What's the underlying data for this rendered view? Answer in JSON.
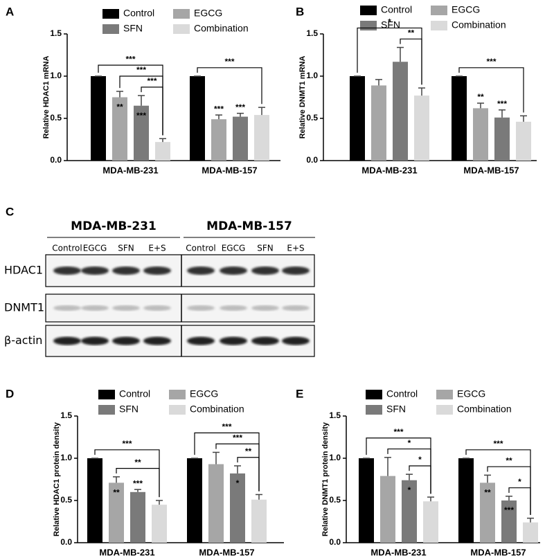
{
  "chart_data": [
    {
      "type": "bar",
      "panel": "A",
      "ylabel": "Relative HDAC1 mRNA",
      "categories": [
        "MDA-MB-231",
        "MDA-MB-157"
      ],
      "series": [
        {
          "name": "Control",
          "color": "#000000",
          "values": [
            1.0,
            1.0
          ],
          "errors": [
            0,
            0
          ]
        },
        {
          "name": "EGCG",
          "color": "#a6a6a6",
          "values": [
            0.75,
            0.49
          ],
          "errors": [
            0.07,
            0.05
          ]
        },
        {
          "name": "SFN",
          "color": "#7a7a7a",
          "values": [
            0.65,
            0.52
          ],
          "errors": [
            0.12,
            0.04
          ]
        },
        {
          "name": "Combination",
          "color": "#dadada",
          "values": [
            0.22,
            0.54
          ],
          "errors": [
            0.04,
            0.09
          ]
        }
      ],
      "ylim": [
        0,
        1.5
      ],
      "yticks": [
        {
          "value": 0,
          "label": "0.0"
        },
        0.5,
        {
          "value": 1,
          "label": "1.0"
        },
        1.5
      ],
      "stars": [
        {
          "text": "**",
          "series": 1,
          "category": 0,
          "placement": "inside"
        },
        {
          "text": "***",
          "series": 2,
          "category": 0,
          "placement": "inside"
        },
        {
          "text": "***",
          "series": 1,
          "category": 1,
          "placement": "above"
        },
        {
          "text": "***",
          "series": 2,
          "category": 1,
          "placement": "above"
        }
      ],
      "brackets": [
        {
          "category": 0,
          "from": 0,
          "to": 3,
          "text": "***"
        },
        {
          "category": 0,
          "from": 1,
          "to": 3,
          "text": "***"
        },
        {
          "category": 0,
          "from": 2,
          "to": 3,
          "text": "***"
        },
        {
          "category": 1,
          "from": 0,
          "to": 3,
          "text": "***"
        }
      ]
    },
    {
      "type": "bar",
      "panel": "B",
      "ylabel": "Relative DNMT1 mRNA",
      "categories": [
        "MDA-MB-231",
        "MDA-MB-157"
      ],
      "series": [
        {
          "name": "Control",
          "color": "#000000",
          "values": [
            1.0,
            1.0
          ],
          "errors": [
            0,
            0
          ]
        },
        {
          "name": "EGCG",
          "color": "#a6a6a6",
          "values": [
            0.89,
            0.62
          ],
          "errors": [
            0.07,
            0.06
          ]
        },
        {
          "name": "SFN",
          "color": "#7a7a7a",
          "values": [
            1.17,
            0.51
          ],
          "errors": [
            0.17,
            0.09
          ]
        },
        {
          "name": "Combination",
          "color": "#dadada",
          "values": [
            0.77,
            0.46
          ],
          "errors": [
            0.09,
            0.07
          ]
        }
      ],
      "ylim": [
        0,
        1.5
      ],
      "yticks": [
        {
          "value": 0,
          "label": "0.0"
        },
        0.5,
        {
          "value": 1,
          "label": "1.0"
        },
        1.5
      ],
      "stars": [
        {
          "text": "**",
          "series": 1,
          "category": 1,
          "placement": "above"
        },
        {
          "text": "***",
          "series": 2,
          "category": 1,
          "placement": "above"
        }
      ],
      "brackets": [
        {
          "category": 0,
          "from": 0,
          "to": 3,
          "text": "*"
        },
        {
          "category": 0,
          "from": 2,
          "to": 3,
          "text": "**"
        },
        {
          "category": 1,
          "from": 0,
          "to": 3,
          "text": "***"
        }
      ]
    },
    {
      "type": "bar",
      "panel": "D",
      "ylabel": "Relative HDAC1 protein density",
      "categories": [
        "MDA-MB-231",
        "MDA-MB-157"
      ],
      "series": [
        {
          "name": "Control",
          "color": "#000000",
          "values": [
            1.0,
            1.0
          ],
          "errors": [
            0,
            0
          ]
        },
        {
          "name": "EGCG",
          "color": "#a6a6a6",
          "values": [
            0.71,
            0.93
          ],
          "errors": [
            0.07,
            0.14
          ]
        },
        {
          "name": "SFN",
          "color": "#7a7a7a",
          "values": [
            0.6,
            0.82
          ],
          "errors": [
            0.03,
            0.09
          ]
        },
        {
          "name": "Combination",
          "color": "#dadada",
          "values": [
            0.45,
            0.51
          ],
          "errors": [
            0.05,
            0.06
          ]
        }
      ],
      "ylim": [
        0,
        1.5
      ],
      "yticks": [
        {
          "value": 0,
          "label": "0.0"
        },
        0.5,
        {
          "value": 1,
          "label": "1.0"
        },
        1.5
      ],
      "stars": [
        {
          "text": "**",
          "series": 1,
          "category": 0,
          "placement": "inside"
        },
        {
          "text": "***",
          "series": 2,
          "category": 0,
          "placement": "above"
        },
        {
          "text": "*",
          "series": 2,
          "category": 1,
          "placement": "inside"
        }
      ],
      "brackets": [
        {
          "category": 0,
          "from": 0,
          "to": 3,
          "text": "***"
        },
        {
          "category": 0,
          "from": 1,
          "to": 3,
          "text": "**"
        },
        {
          "category": 1,
          "from": 0,
          "to": 3,
          "text": "***"
        },
        {
          "category": 1,
          "from": 1,
          "to": 3,
          "text": "***"
        },
        {
          "category": 1,
          "from": 2,
          "to": 3,
          "text": "**"
        }
      ]
    },
    {
      "type": "bar",
      "panel": "E",
      "ylabel": "Relative DNMT1 protein density",
      "categories": [
        "MDA-MB-231",
        "MDA-MB-157"
      ],
      "series": [
        {
          "name": "Control",
          "color": "#000000",
          "values": [
            1.0,
            1.0
          ],
          "errors": [
            0,
            0
          ]
        },
        {
          "name": "EGCG",
          "color": "#a6a6a6",
          "values": [
            0.79,
            0.71
          ],
          "errors": [
            0.22,
            0.09
          ]
        },
        {
          "name": "SFN",
          "color": "#7a7a7a",
          "values": [
            0.74,
            0.5
          ],
          "errors": [
            0.07,
            0.05
          ]
        },
        {
          "name": "Combination",
          "color": "#dadada",
          "values": [
            0.49,
            0.24
          ],
          "errors": [
            0.05,
            0.05
          ]
        }
      ],
      "ylim": [
        0,
        1.5
      ],
      "yticks": [
        {
          "value": 0,
          "label": "0.0"
        },
        0.5,
        {
          "value": 1,
          "label": "1.0"
        },
        1.5
      ],
      "stars": [
        {
          "text": "*",
          "series": 2,
          "category": 0,
          "placement": "inside"
        },
        {
          "text": "**",
          "series": 1,
          "category": 1,
          "placement": "inside"
        },
        {
          "text": "***",
          "series": 2,
          "category": 1,
          "placement": "inside"
        }
      ],
      "brackets": [
        {
          "category": 0,
          "from": 0,
          "to": 3,
          "text": "***"
        },
        {
          "category": 0,
          "from": 1,
          "to": 3,
          "text": "*"
        },
        {
          "category": 0,
          "from": 2,
          "to": 3,
          "text": "*"
        },
        {
          "category": 1,
          "from": 0,
          "to": 3,
          "text": "***"
        },
        {
          "category": 1,
          "from": 1,
          "to": 3,
          "text": "**"
        },
        {
          "category": 1,
          "from": 2,
          "to": 3,
          "text": "*"
        }
      ]
    }
  ],
  "blot": {
    "panel": "C",
    "groups": [
      "MDA-MB-231",
      "MDA-MB-157"
    ],
    "lanes": [
      "Control",
      "EGCG",
      "SFN",
      "E+S",
      "Control",
      "EGCG",
      "SFN",
      "E+S"
    ],
    "proteins": [
      "HDAC1",
      "DNMT1",
      "β-actin"
    ]
  }
}
